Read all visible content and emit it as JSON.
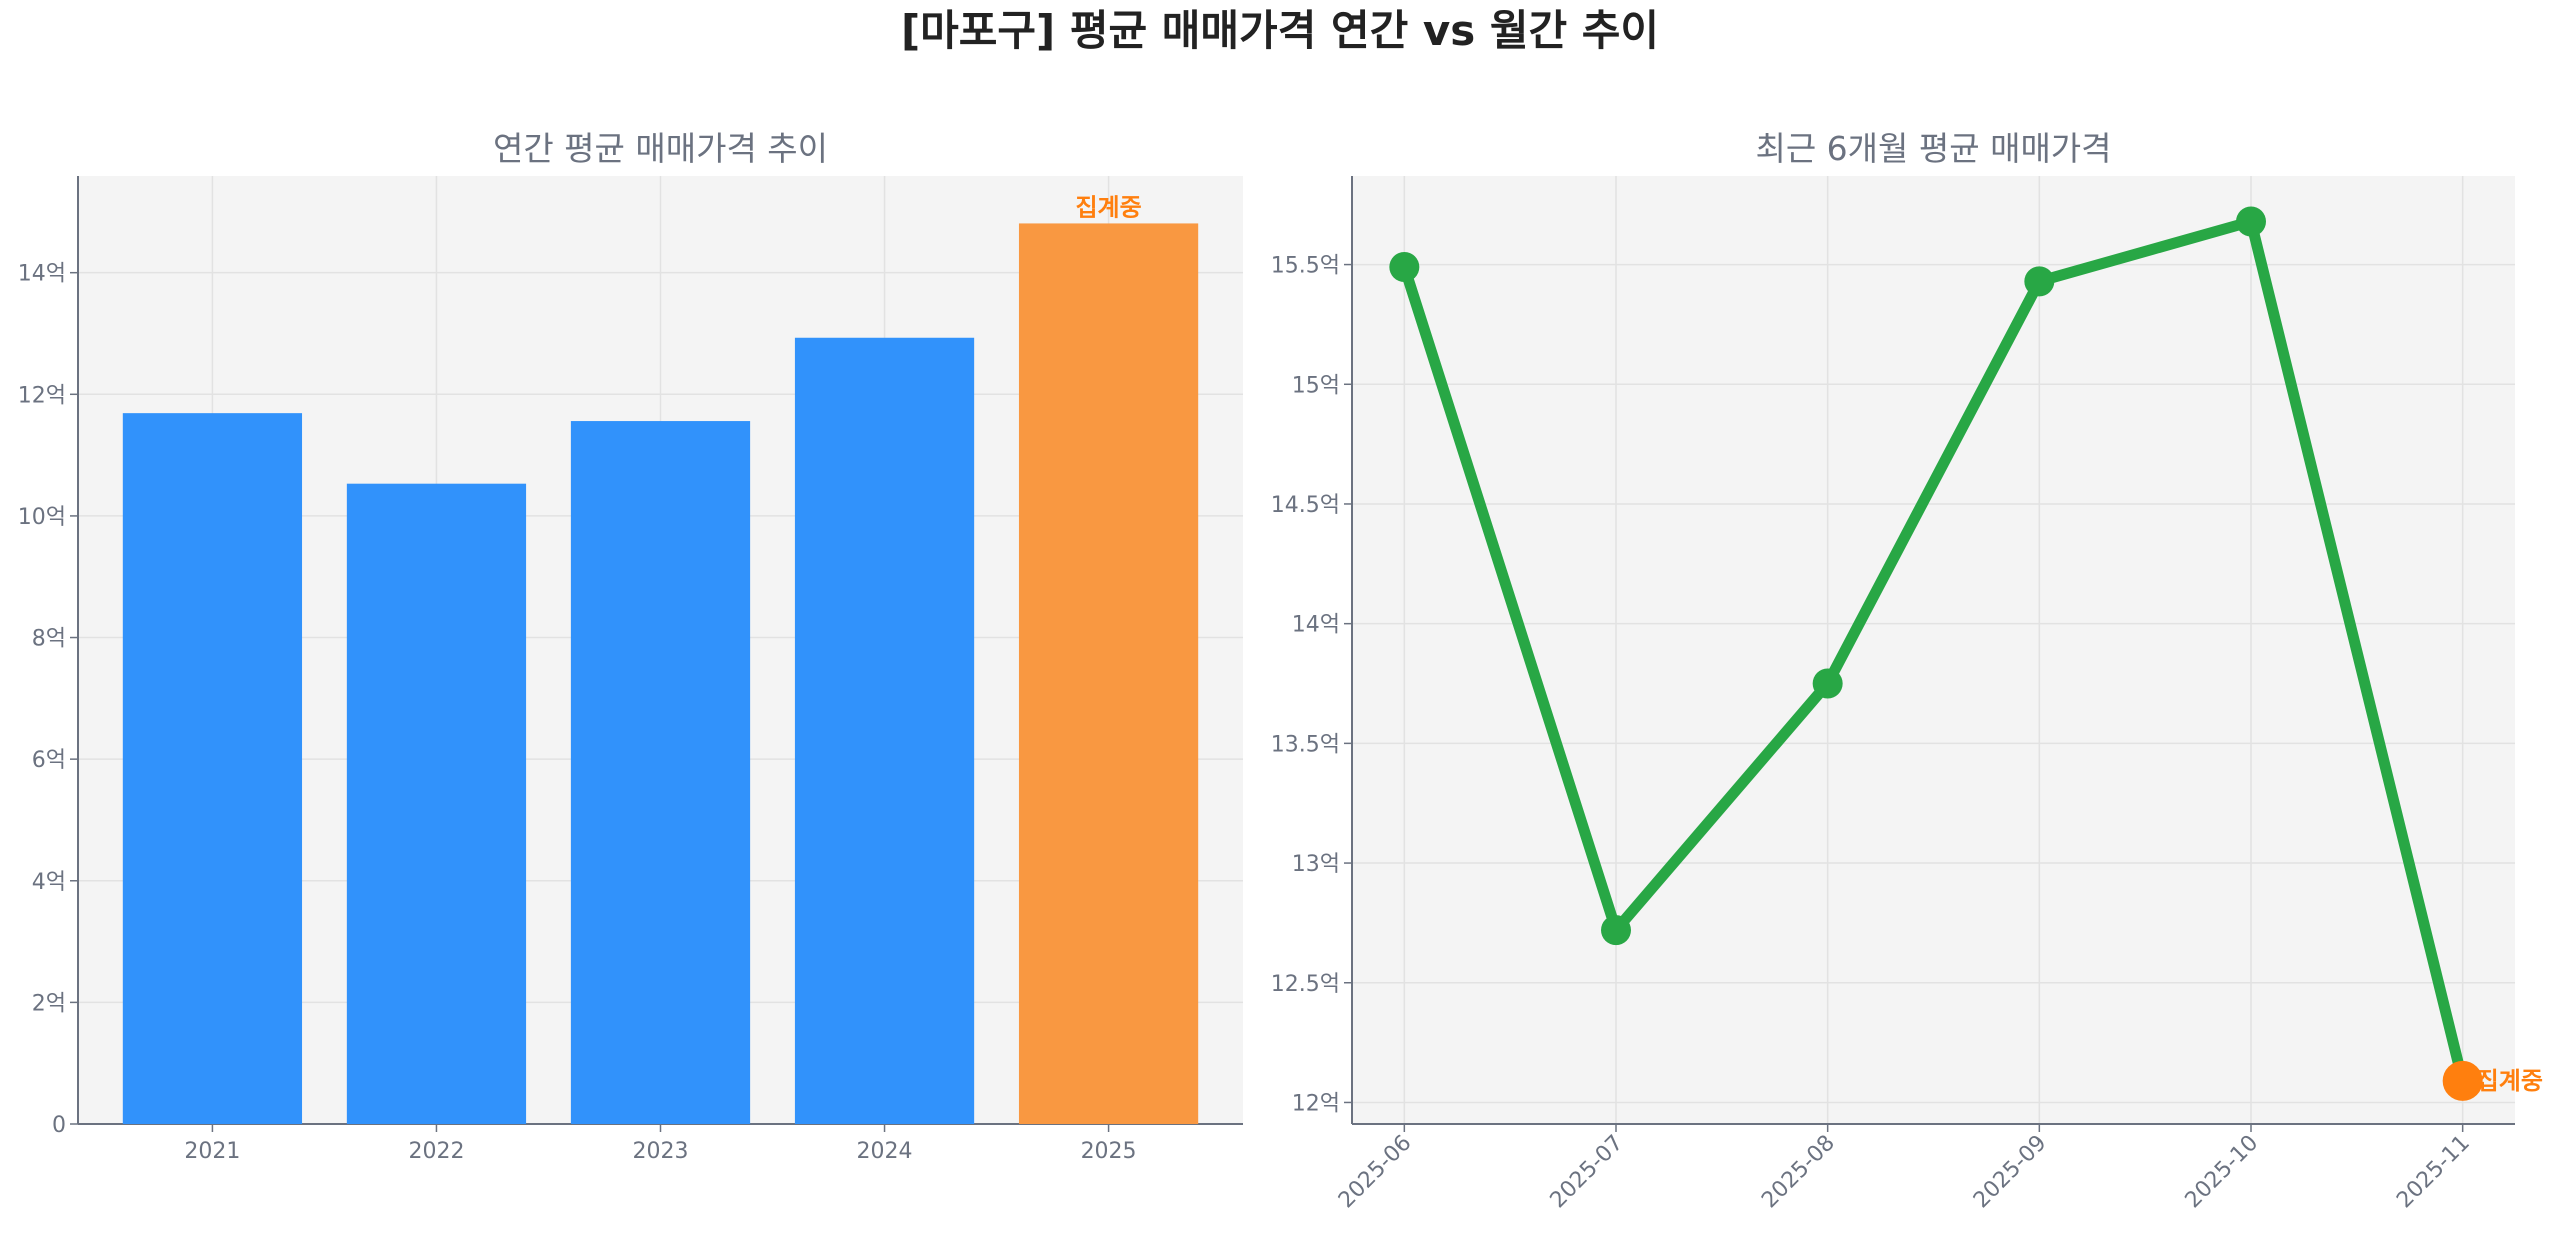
{
  "title": "[마포구] 평균 매매가격 연간 vs 월간 추이",
  "colors": {
    "bar": "#3192fb",
    "bar_partial": "#f99841",
    "line": "#28a745",
    "partial_marker": "#ff7f0e",
    "annotation": "#ff7f0e",
    "plot_bg": "#f4f4f4"
  },
  "chart_data": [
    {
      "type": "bar",
      "title": "연간 평균 매매가격 추이",
      "categories": [
        "2021",
        "2022",
        "2023",
        "2024",
        "2025"
      ],
      "values": [
        11.69,
        10.53,
        11.56,
        12.93,
        14.81
      ],
      "unit": "억",
      "ylim": [
        0,
        15.59
      ],
      "yticks": [
        0,
        2,
        4,
        6,
        8,
        10,
        12,
        14
      ],
      "ytick_labels": [
        "0",
        "2억",
        "4억",
        "6억",
        "8억",
        "10억",
        "12억",
        "14억"
      ],
      "grid": true,
      "annotation": {
        "category": "2025",
        "text": "집계중"
      }
    },
    {
      "type": "line",
      "title": "최근 6개월 평균 매매가격",
      "x": [
        "2025-06",
        "2025-07",
        "2025-08",
        "2025-09",
        "2025-10",
        "2025-11"
      ],
      "values": [
        15.49,
        12.72,
        13.75,
        15.43,
        15.68,
        12.09
      ],
      "unit": "억",
      "ylim": [
        11.91,
        15.87
      ],
      "yticks": [
        12,
        12.5,
        13,
        13.5,
        14,
        14.5,
        15,
        15.5
      ],
      "ytick_labels": [
        "12억",
        "12.5억",
        "13억",
        "13.5억",
        "14억",
        "14.5억",
        "15억",
        "15.5억"
      ],
      "grid": true,
      "xtick_rotation": 45,
      "annotation": {
        "x": "2025-11",
        "text": "집계중"
      }
    }
  ]
}
